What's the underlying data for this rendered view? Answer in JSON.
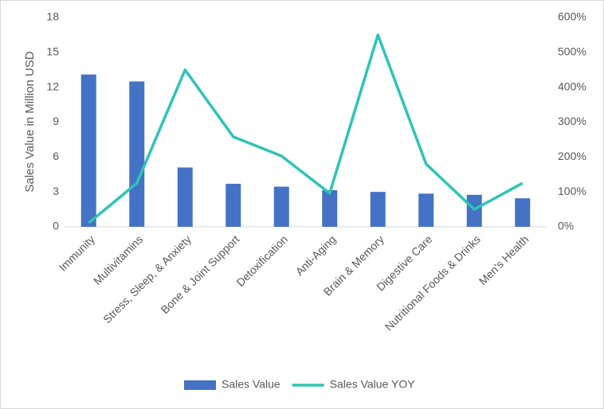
{
  "chart_data": {
    "type": "bar-line",
    "y_label": "Sales Value in Million USD",
    "categories": [
      "Immunity",
      "Multivitamins",
      "Stress, Sleep, & Anxiety",
      "Bone & Joint Support",
      "Detoxification",
      "Anti-Aging",
      "Brain & Memory",
      "Digestive Care",
      "Nutritional Foods & Drinks",
      "Men's Health"
    ],
    "series": [
      {
        "name": "Sales Value",
        "type": "bar",
        "color": "#4472c4",
        "values": [
          13.1,
          12.5,
          5.1,
          3.7,
          3.45,
          3.15,
          3.0,
          2.85,
          2.75,
          2.45
        ]
      },
      {
        "name": "Sales Value YOY",
        "type": "line",
        "axis": "y2",
        "color": "#2ec4b6",
        "values": [
          11,
          125,
          450,
          258,
          203,
          96,
          550,
          180,
          50,
          125
        ]
      }
    ],
    "ylim": [
      0,
      18
    ],
    "yticks": [
      0,
      3,
      6,
      9,
      12,
      15,
      18
    ],
    "y2lim": [
      0,
      600
    ],
    "y2ticks": [
      {
        "value": 0,
        "label": "0%"
      },
      {
        "value": 100,
        "label": "100%"
      },
      {
        "value": 200,
        "label": "200%"
      },
      {
        "value": 300,
        "label": "300%"
      },
      {
        "value": 400,
        "label": "400%"
      },
      {
        "value": 500,
        "label": "500%"
      },
      {
        "value": 600,
        "label": "600%"
      }
    ],
    "legend": "bottom"
  }
}
